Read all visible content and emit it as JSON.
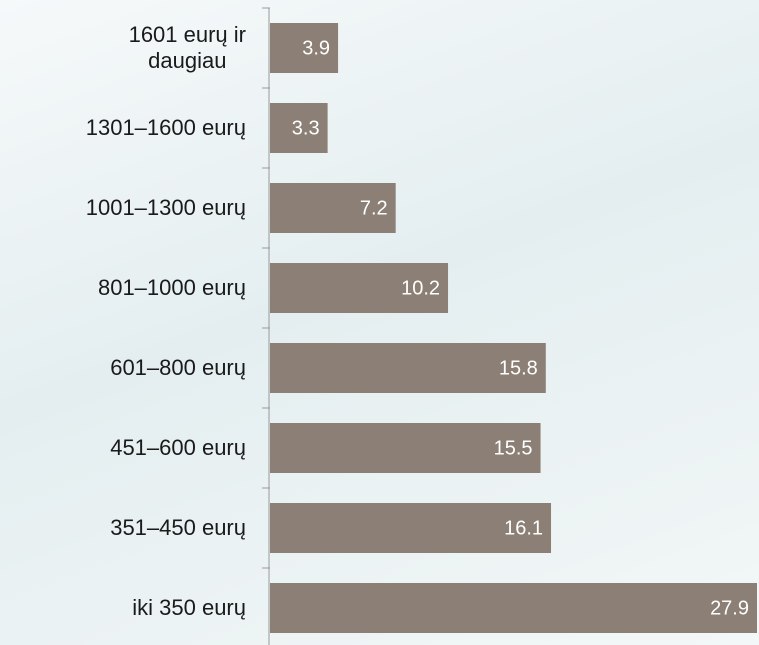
{
  "chart_data": {
    "type": "barh",
    "categories": [
      "1601 eurų ir\ndaugiau",
      "1301–1600 eurų",
      "1001–1300 eurų",
      "801–1000 eurų",
      "601–800 eurų",
      "451–600 eurų",
      "351–450 eurų",
      "iki 350 eurų"
    ],
    "values": [
      3.9,
      3.3,
      7.2,
      10.2,
      15.8,
      15.5,
      16.1,
      27.9
    ],
    "color": "#8c7f76"
  }
}
